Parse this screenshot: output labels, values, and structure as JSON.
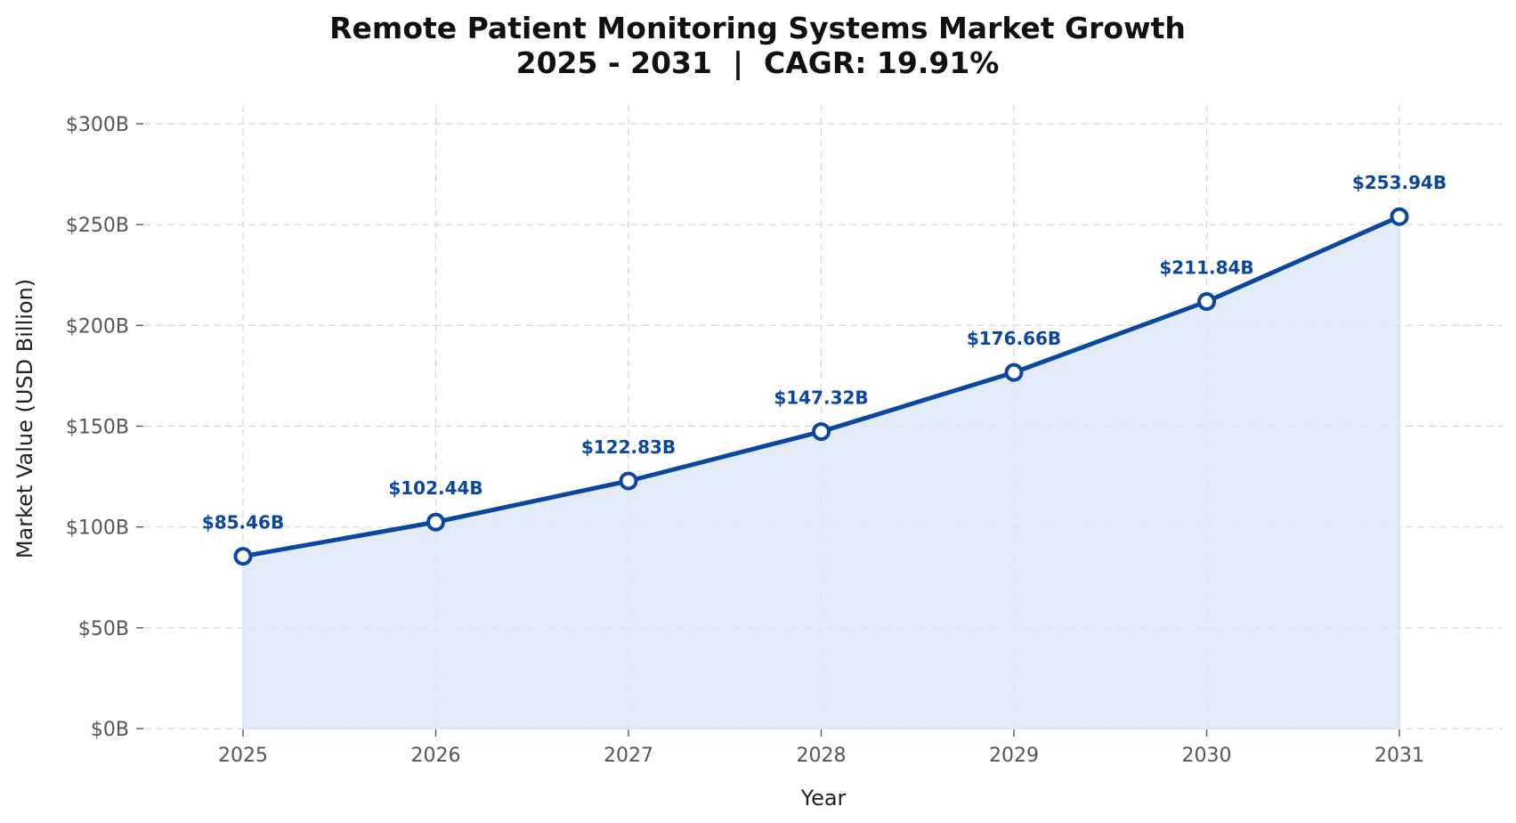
{
  "colors": {
    "line": "#0b47a1",
    "fill": "#dde8f5",
    "marker_face": "#ffffff",
    "data_label": "#0b47a1",
    "grid": "#d6d6d6",
    "tick_text": "#555555"
  },
  "chart_data": {
    "type": "area",
    "title": "Remote Patient Monitoring Systems Market Growth",
    "subtitle": "2025 - 2031  |  CAGR: 19.91%",
    "xlabel": "Year",
    "ylabel": "Market Value (USD Billion)",
    "categories": [
      "2025",
      "2026",
      "2027",
      "2028",
      "2029",
      "2030",
      "2031"
    ],
    "series": [
      {
        "values": [
          85.46,
          102.44,
          122.83,
          147.32,
          176.66,
          211.84,
          253.94
        ],
        "labels": [
          "$85.46B",
          "$102.44B",
          "$122.83B",
          "$147.32B",
          "$176.66B",
          "$211.84B",
          "$253.94B"
        ]
      }
    ],
    "ylim": [
      0,
      300
    ],
    "yticks": [
      0,
      50,
      100,
      150,
      200,
      250,
      300
    ],
    "ytick_labels": [
      "$0B",
      "$50B",
      "$100B",
      "$150B",
      "$200B",
      "$250B",
      "$300B"
    ],
    "grid": true,
    "markers": "hollow-circle"
  }
}
